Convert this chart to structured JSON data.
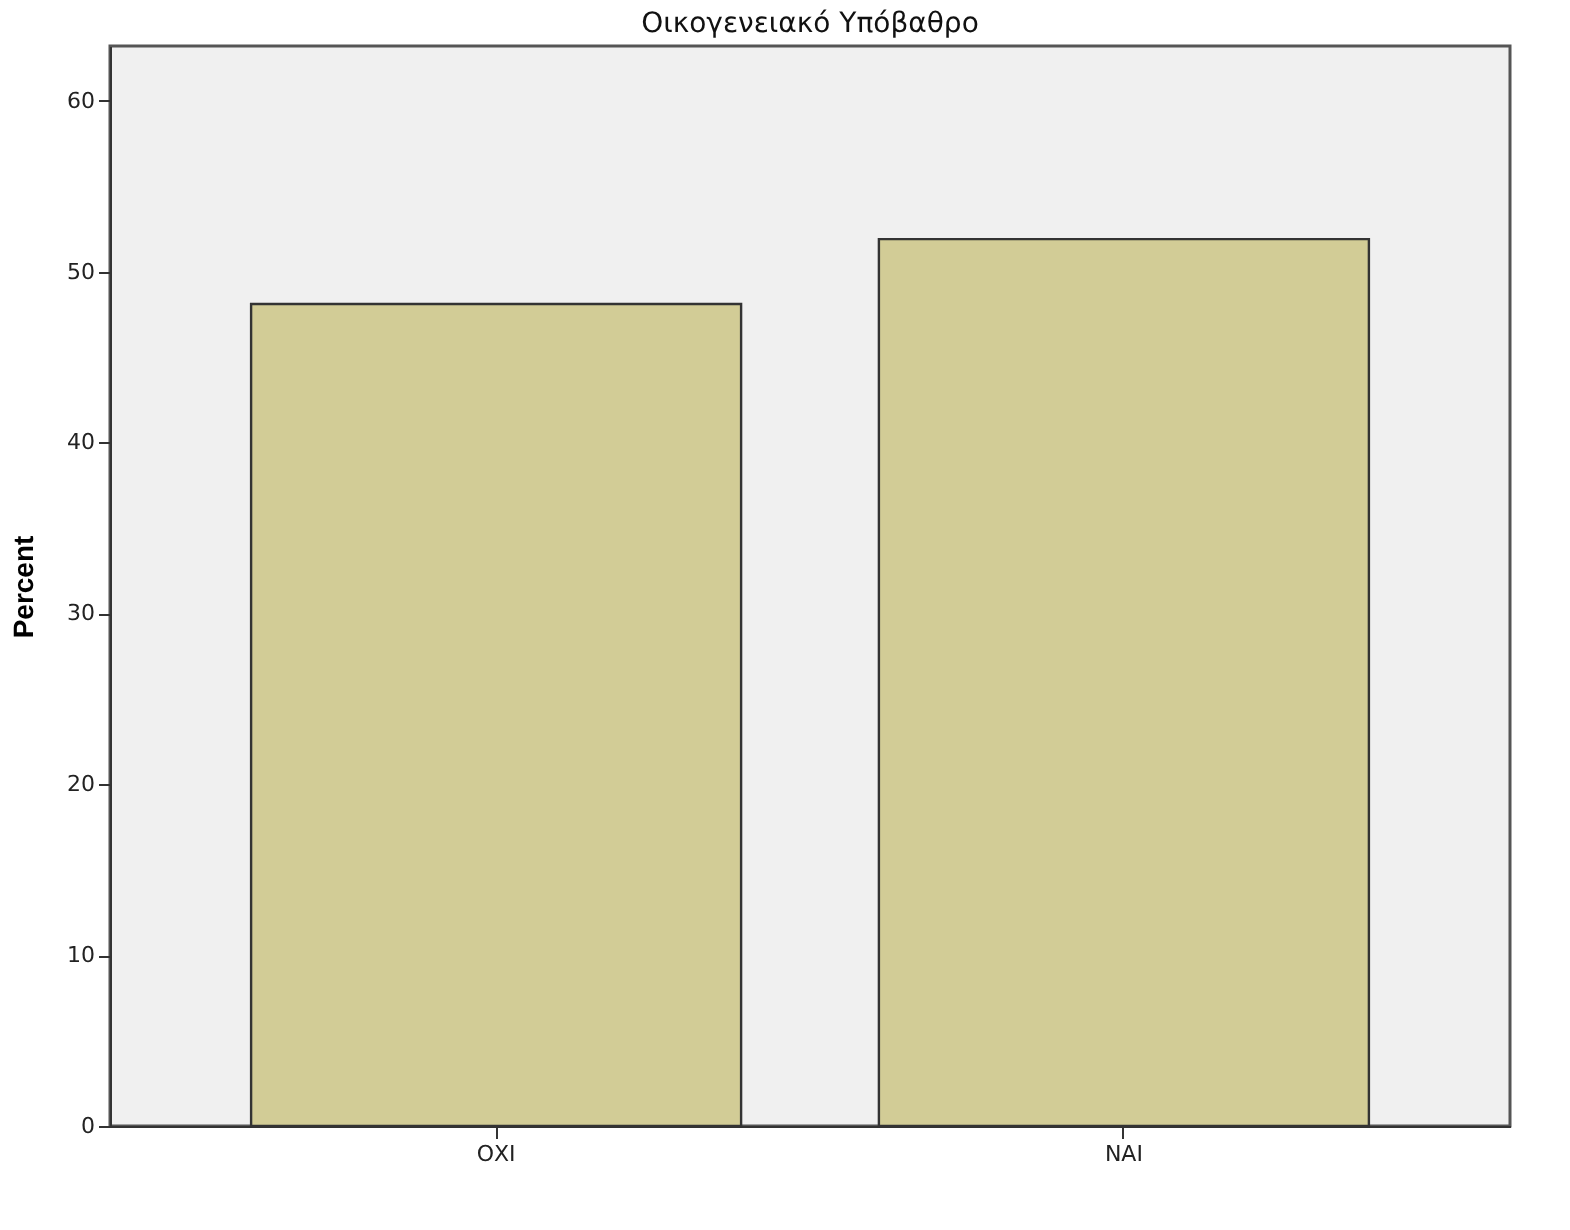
{
  "chart_data": {
    "type": "bar",
    "title": "Οικογενειακό Υπόβαθρο",
    "ylabel": "Percent",
    "categories": [
      "ΟΧΙ",
      "ΝΑΙ"
    ],
    "values": [
      48.1,
      51.9
    ],
    "color": "#d2cc96",
    "ylim": [
      0,
      63.2
    ],
    "yticks": [
      0,
      10,
      20,
      30,
      40,
      50,
      60
    ],
    "grid": false
  }
}
